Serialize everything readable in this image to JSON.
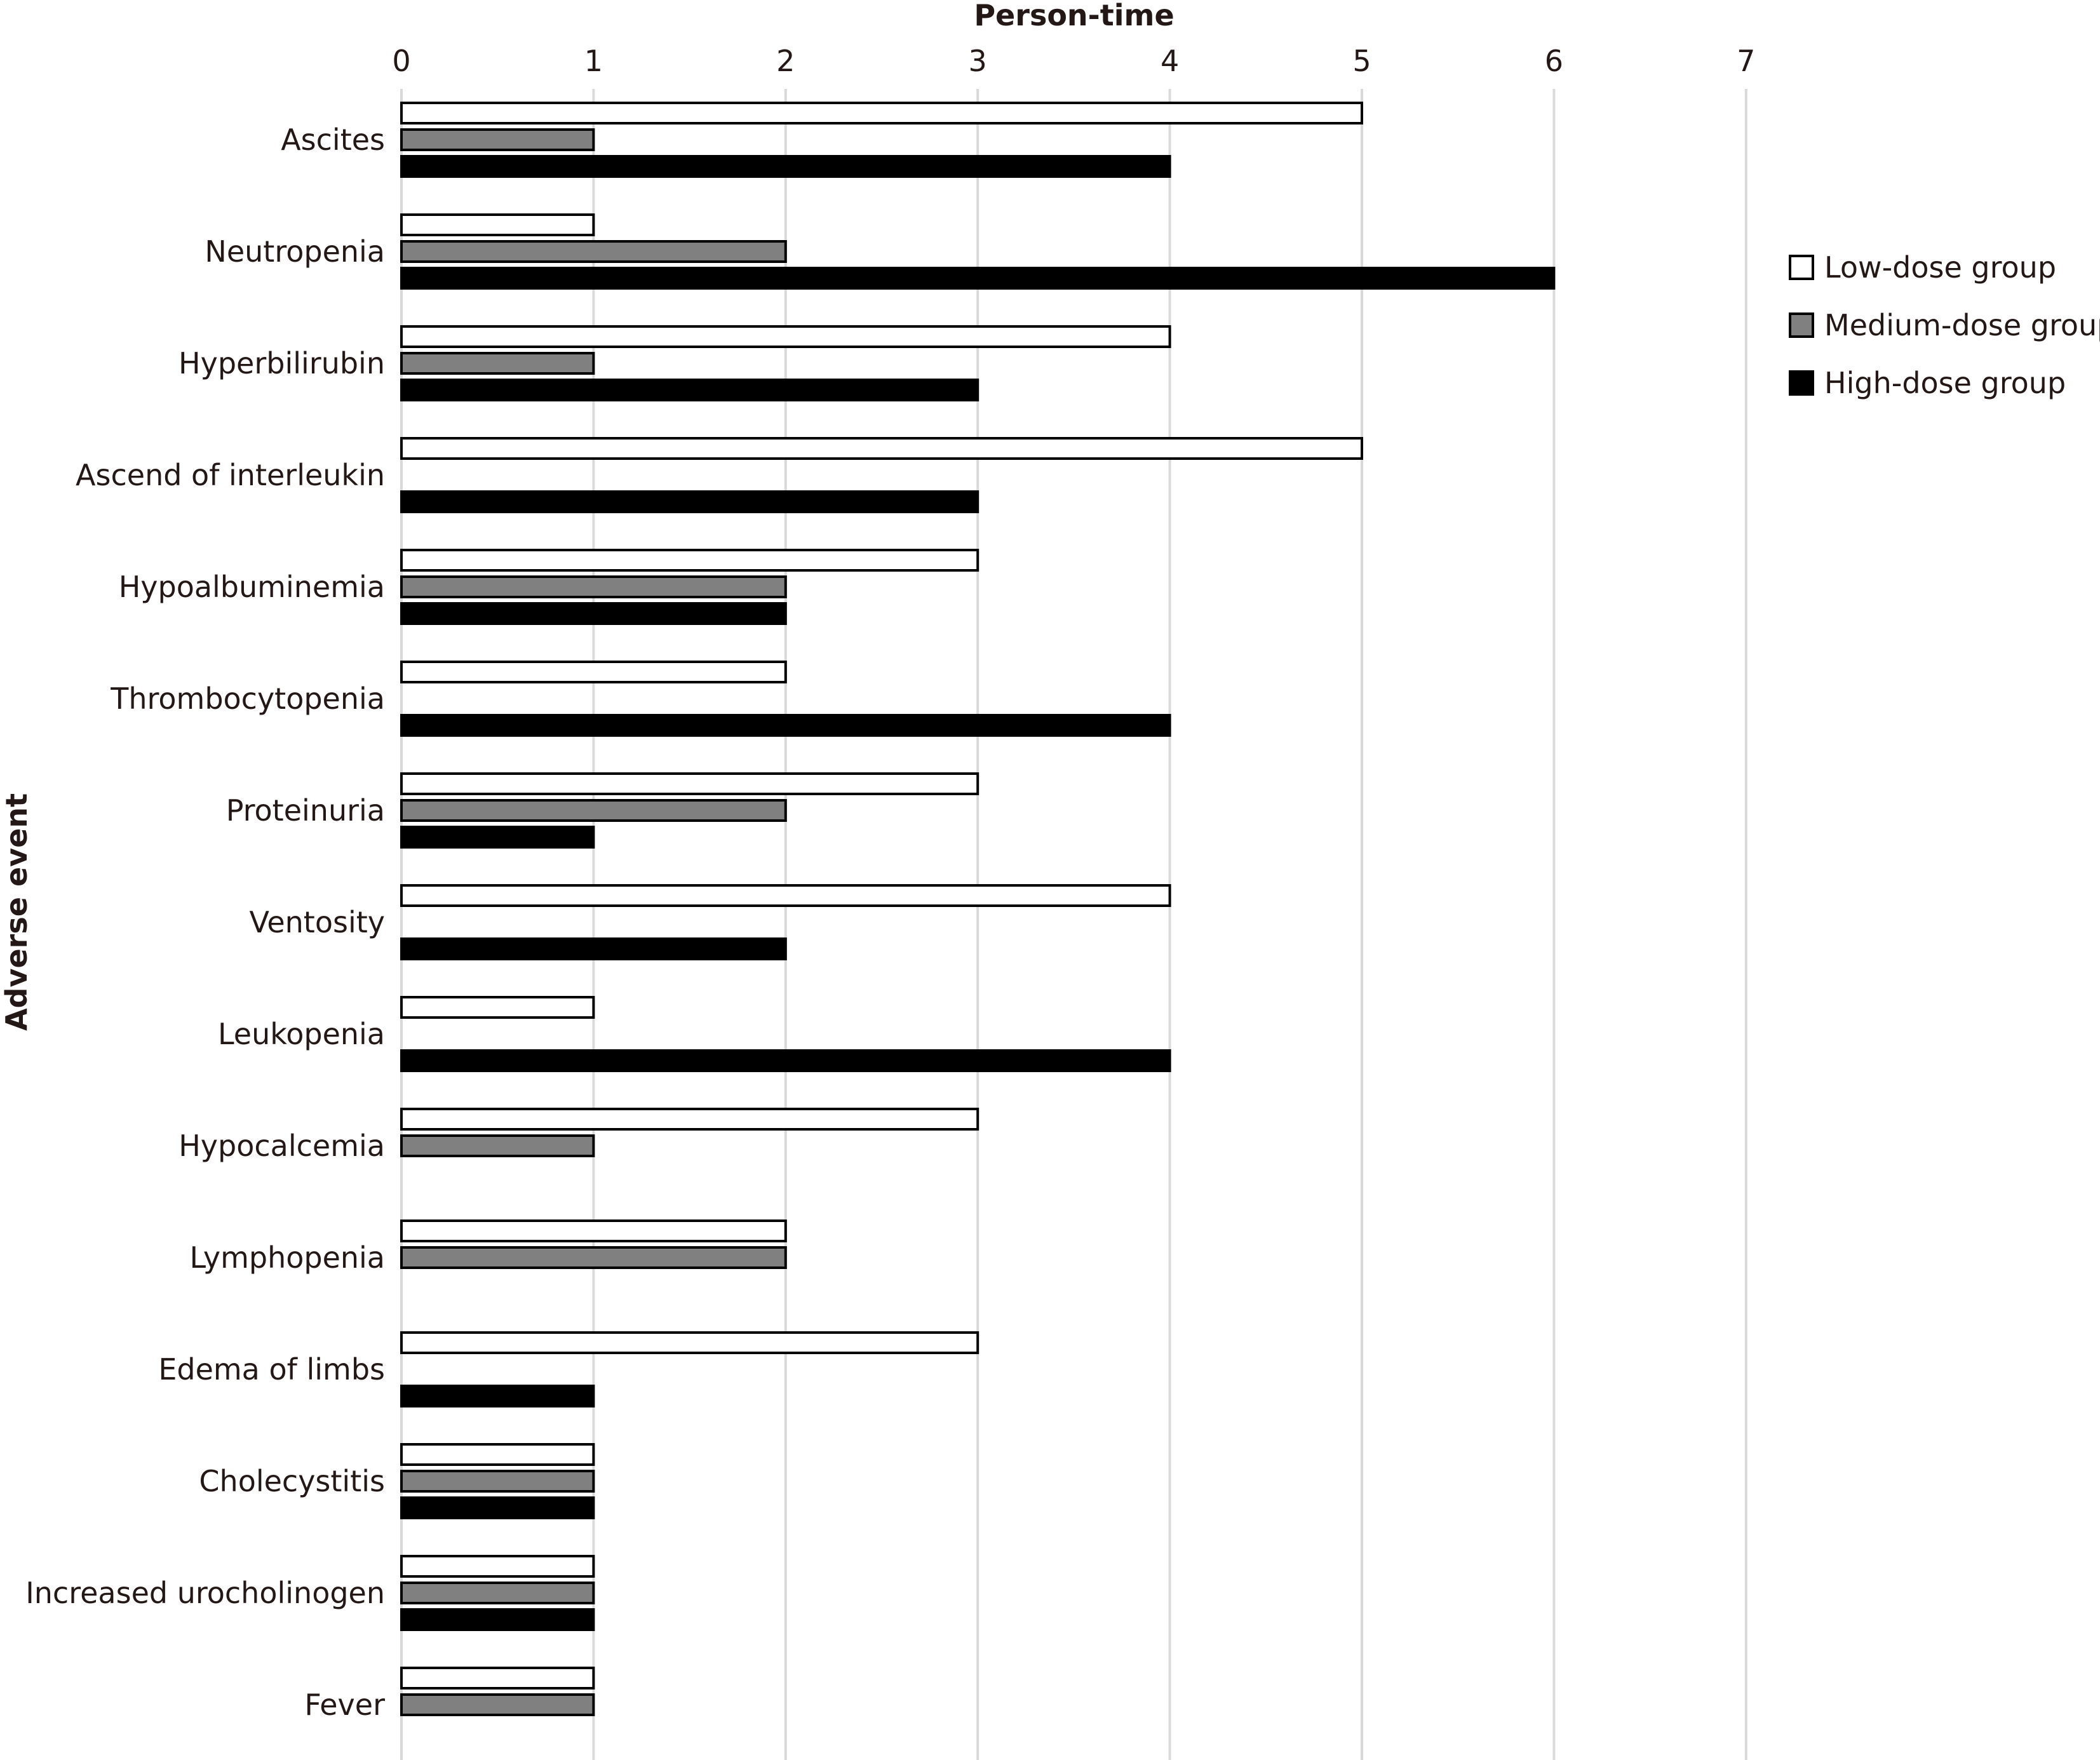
{
  "chart_data": {
    "type": "bar",
    "orientation": "horizontal",
    "xlabel": "Person-time",
    "ylabel": "Adverse event",
    "xlim": [
      0,
      7
    ],
    "xticks": [
      0,
      1,
      2,
      3,
      4,
      5,
      6,
      7
    ],
    "grid": true,
    "legend_position": "right",
    "categories": [
      "Ascites",
      "Neutropenia",
      "Hyperbilirubin",
      "Ascend of interleukin",
      "Hypoalbuminemia",
      "Thrombocytopenia",
      "Proteinuria",
      "Ventosity",
      "Leukopenia",
      "Hypocalcemia",
      "Lymphopenia",
      "Edema of limbs",
      "Cholecystitis",
      "Increased urocholinogen",
      "Fever"
    ],
    "series": [
      {
        "name": "Low-dose group",
        "color": "#ffffff",
        "values": [
          5,
          1,
          4,
          5,
          3,
          2,
          3,
          4,
          1,
          3,
          2,
          3,
          1,
          1,
          1
        ]
      },
      {
        "name": "Medium-dose group",
        "color": "#808080",
        "values": [
          1,
          2,
          1,
          0,
          2,
          0,
          2,
          0,
          0,
          1,
          2,
          0,
          1,
          1,
          1
        ]
      },
      {
        "name": "High-dose group",
        "color": "#000000",
        "values": [
          4,
          6,
          3,
          3,
          2,
          4,
          1,
          2,
          4,
          0,
          0,
          1,
          1,
          1,
          0
        ]
      }
    ]
  }
}
